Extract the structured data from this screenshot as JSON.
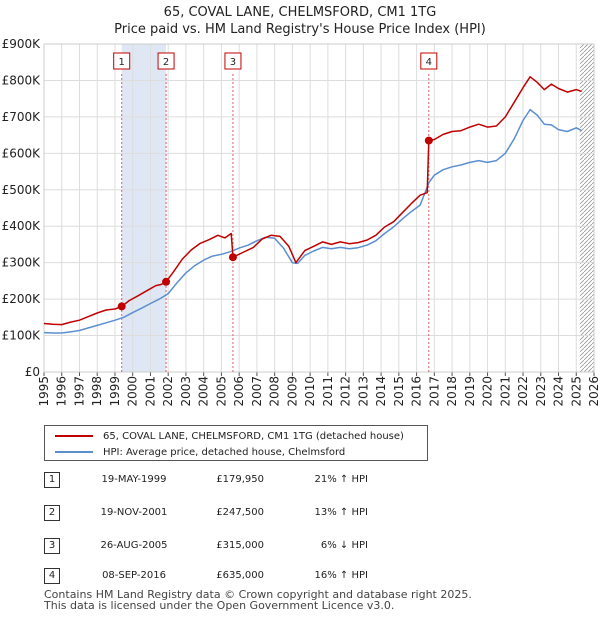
{
  "title": {
    "line1": "65, COVAL LANE, CHELMSFORD, CM1 1TG",
    "line2": "Price paid vs. HM Land Registry's House Price Index (HPI)"
  },
  "colors": {
    "price_line": "#c00000",
    "hpi_line": "#5b8fd0",
    "shade": "#dfe7f5",
    "marker_line": "#e06060",
    "grid": "#dddddd"
  },
  "chart_data": {
    "type": "line",
    "title": "Price paid vs. HM Land Registry's House Price Index (HPI)",
    "xlabel": "",
    "ylabel": "",
    "xlim": [
      1995,
      2026
    ],
    "ylim": [
      0,
      900000
    ],
    "x_ticks": [
      "1995",
      "1996",
      "1997",
      "1998",
      "1999",
      "2000",
      "2001",
      "2002",
      "2003",
      "2004",
      "2005",
      "2006",
      "2007",
      "2008",
      "2009",
      "2010",
      "2011",
      "2012",
      "2013",
      "2014",
      "2015",
      "2016",
      "2017",
      "2018",
      "2019",
      "2020",
      "2021",
      "2022",
      "2023",
      "2024",
      "2025",
      "2026"
    ],
    "y_ticks": [
      {
        "value": 0,
        "label": "£0"
      },
      {
        "value": 100000,
        "label": "£100K"
      },
      {
        "value": 200000,
        "label": "£200K"
      },
      {
        "value": 300000,
        "label": "£300K"
      },
      {
        "value": 400000,
        "label": "£400K"
      },
      {
        "value": 500000,
        "label": "£500K"
      },
      {
        "value": 600000,
        "label": "£600K"
      },
      {
        "value": 700000,
        "label": "£700K"
      },
      {
        "value": 800000,
        "label": "£800K"
      },
      {
        "value": 900000,
        "label": "£900K"
      }
    ],
    "series": [
      {
        "name": "65, COVAL LANE, CHELMSFORD, CM1 1TG (detached house)",
        "color": "#c00000",
        "x": [
          1995.0,
          1995.5,
          1996.0,
          1996.5,
          1997.0,
          1997.5,
          1998.0,
          1998.5,
          1999.0,
          1999.38,
          1999.8,
          2000.3,
          2000.8,
          2001.3,
          2001.6,
          2001.88,
          2002.3,
          2002.8,
          2003.3,
          2003.8,
          2004.3,
          2004.8,
          2005.2,
          2005.55,
          2005.65,
          2006.2,
          2006.8,
          2007.3,
          2007.8,
          2008.3,
          2008.8,
          2009.2,
          2009.7,
          2010.2,
          2010.7,
          2011.2,
          2011.7,
          2012.2,
          2012.7,
          2013.2,
          2013.7,
          2014.2,
          2014.7,
          2015.2,
          2015.7,
          2016.2,
          2016.6,
          2016.69,
          2017.0,
          2017.5,
          2018.0,
          2018.5,
          2019.0,
          2019.5,
          2020.0,
          2020.5,
          2021.0,
          2021.5,
          2022.0,
          2022.4,
          2022.8,
          2023.2,
          2023.6,
          2024.0,
          2024.5,
          2025.0,
          2025.3
        ],
        "y": [
          133000,
          131000,
          130000,
          137000,
          142000,
          152000,
          162000,
          170000,
          173000,
          179950,
          196000,
          209000,
          223000,
          237000,
          240000,
          247500,
          275000,
          310000,
          335000,
          353000,
          363000,
          375000,
          368000,
          380000,
          315000,
          328000,
          342000,
          365000,
          375000,
          372000,
          345000,
          300000,
          333000,
          345000,
          357000,
          350000,
          357000,
          352000,
          355000,
          362000,
          375000,
          398000,
          412000,
          437000,
          462000,
          485000,
          492000,
          635000,
          638000,
          652000,
          660000,
          662000,
          672000,
          680000,
          672000,
          675000,
          700000,
          740000,
          780000,
          810000,
          795000,
          775000,
          790000,
          778000,
          768000,
          775000,
          770000
        ]
      },
      {
        "name": "HPI: Average price, detached house, Chelmsford",
        "color": "#5b8fd0",
        "x": [
          1995.0,
          1995.5,
          1996.0,
          1996.5,
          1997.0,
          1997.5,
          1998.0,
          1998.5,
          1999.0,
          1999.5,
          2000.0,
          2000.5,
          2001.0,
          2001.5,
          2002.0,
          2002.5,
          2003.0,
          2003.5,
          2004.0,
          2004.5,
          2005.0,
          2005.5,
          2006.0,
          2006.5,
          2007.0,
          2007.5,
          2008.0,
          2008.5,
          2009.0,
          2009.3,
          2009.7,
          2010.2,
          2010.7,
          2011.2,
          2011.7,
          2012.2,
          2012.7,
          2013.2,
          2013.7,
          2014.2,
          2014.7,
          2015.2,
          2015.7,
          2016.2,
          2016.7,
          2017.0,
          2017.5,
          2018.0,
          2018.5,
          2019.0,
          2019.5,
          2020.0,
          2020.5,
          2021.0,
          2021.5,
          2022.0,
          2022.4,
          2022.8,
          2023.2,
          2023.6,
          2024.0,
          2024.5,
          2025.0,
          2025.3
        ],
        "y": [
          108000,
          107000,
          107000,
          110000,
          114000,
          121000,
          128000,
          135000,
          142000,
          150000,
          163000,
          175000,
          188000,
          200000,
          215000,
          245000,
          272000,
          292000,
          307000,
          318000,
          323000,
          330000,
          340000,
          348000,
          360000,
          370000,
          367000,
          340000,
          300000,
          298000,
          320000,
          332000,
          342000,
          338000,
          342000,
          338000,
          341000,
          348000,
          360000,
          380000,
          398000,
          420000,
          440000,
          458000,
          520000,
          540000,
          555000,
          563000,
          568000,
          575000,
          580000,
          575000,
          580000,
          600000,
          640000,
          690000,
          720000,
          705000,
          680000,
          678000,
          665000,
          660000,
          670000,
          662000
        ]
      }
    ],
    "transactions": [
      {
        "num": "1",
        "x": 1999.38,
        "y": 179950,
        "date": "19-MAY-1999",
        "price": "£179,950",
        "hpi": "21% ↑ HPI"
      },
      {
        "num": "2",
        "x": 2001.88,
        "y": 247500,
        "date": "19-NOV-2001",
        "price": "£247,500",
        "hpi": "13% ↑ HPI"
      },
      {
        "num": "3",
        "x": 2005.65,
        "y": 315000,
        "date": "26-AUG-2005",
        "price": "£315,000",
        "hpi": "6% ↓ HPI"
      },
      {
        "num": "4",
        "x": 2016.69,
        "y": 635000,
        "date": "08-SEP-2016",
        "price": "£635,000",
        "hpi": "16% ↑ HPI"
      }
    ],
    "shaded_ranges": [
      [
        1999.38,
        2001.88
      ]
    ],
    "hatched_from": 2025.2
  },
  "legend": {
    "price_label": "65, COVAL LANE, CHELMSFORD, CM1 1TG (detached house)",
    "hpi_label": "HPI: Average price, detached house, Chelmsford"
  },
  "footer": {
    "line1": "Contains HM Land Registry data © Crown copyright and database right 2025.",
    "line2": "This data is licensed under the Open Government Licence v3.0."
  }
}
